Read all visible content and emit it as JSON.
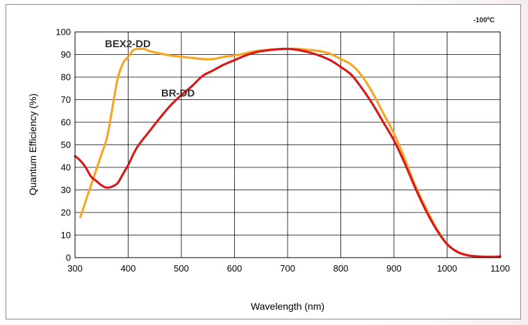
{
  "chart_data": {
    "type": "line",
    "title": "",
    "annotation": "-100ºC",
    "xlabel": "Wavelength (nm)",
    "ylabel": "Quantum Efficiency (%)",
    "xlim": [
      300,
      1100
    ],
    "ylim": [
      0,
      100
    ],
    "xticks": [
      300,
      400,
      500,
      600,
      700,
      800,
      900,
      1000,
      1100
    ],
    "yticks": [
      0,
      10,
      20,
      30,
      40,
      50,
      60,
      70,
      80,
      90,
      100
    ],
    "grid": true,
    "series": [
      {
        "name": "BEX2-DD",
        "color": "#f5a623",
        "x": [
          310,
          320,
          330,
          340,
          350,
          360,
          370,
          380,
          390,
          400,
          410,
          420,
          430,
          440,
          460,
          480,
          500,
          520,
          540,
          560,
          580,
          600,
          620,
          640,
          660,
          680,
          700,
          720,
          740,
          760,
          780,
          800,
          820,
          840,
          860,
          880,
          900,
          920,
          940,
          960,
          980,
          1000,
          1020,
          1040,
          1060,
          1080,
          1100
        ],
        "y": [
          18,
          25,
          32,
          39,
          46,
          53,
          66,
          79,
          86,
          89,
          92,
          92.5,
          92.5,
          91.5,
          90.5,
          89.5,
          89,
          88.5,
          88,
          88,
          89,
          89.5,
          90.5,
          91.5,
          92,
          92.3,
          92.5,
          92.5,
          92,
          91.5,
          90.3,
          88,
          85.5,
          80.5,
          73,
          64,
          55,
          44,
          32,
          22,
          13,
          6,
          2.5,
          1,
          0.5,
          0.3,
          0.5
        ]
      },
      {
        "name": "BR-DD",
        "color": "#d7191c",
        "x": [
          300,
          310,
          320,
          330,
          340,
          350,
          360,
          370,
          380,
          390,
          400,
          410,
          420,
          440,
          460,
          480,
          500,
          520,
          540,
          560,
          580,
          600,
          620,
          640,
          660,
          680,
          700,
          720,
          740,
          760,
          780,
          800,
          820,
          840,
          860,
          880,
          900,
          920,
          940,
          960,
          980,
          1000,
          1020,
          1040,
          1060,
          1080,
          1100
        ],
        "y": [
          45,
          43,
          40,
          36,
          34,
          32,
          31,
          31.5,
          33,
          37,
          41,
          46,
          50,
          56,
          62,
          67.5,
          72,
          76,
          80.5,
          83,
          85.5,
          87.5,
          89.5,
          91,
          91.8,
          92.3,
          92.5,
          92,
          91,
          89.5,
          87.5,
          84.5,
          81,
          75,
          68,
          60,
          52,
          42,
          31,
          21,
          12.5,
          6,
          2.5,
          1,
          0.5,
          0.3,
          0.5
        ]
      }
    ]
  }
}
